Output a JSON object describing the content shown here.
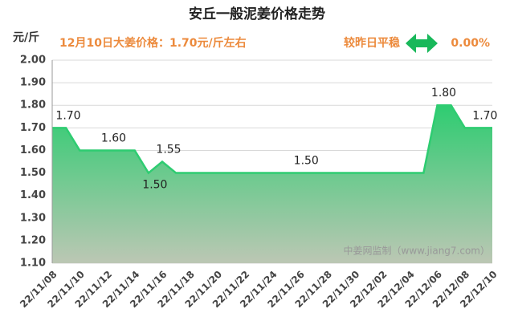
{
  "header": {
    "title": "安丘一般泥姜价格走势",
    "note": "12月10日大姜价格：1.70元/斤左右",
    "trend": "较昨日平稳",
    "change": "0.00%"
  },
  "chart_data": {
    "type": "area",
    "y_label": "元/斤",
    "watermark": "中姜网监制（www.jiang7.com）",
    "color": "#2ecc71",
    "grid": true,
    "categories": [
      "22/11/08",
      null,
      "22/11/10",
      null,
      "22/11/12",
      null,
      "22/11/14",
      null,
      "22/11/16",
      null,
      "22/11/18",
      null,
      "22/11/20",
      null,
      "22/11/22",
      null,
      "22/11/24",
      null,
      "22/11/26",
      null,
      "22/11/28",
      null,
      "22/11/30",
      null,
      "22/12/02",
      null,
      "22/12/04",
      null,
      "22/12/06",
      null,
      "22/12/08",
      null,
      "22/12/10"
    ],
    "values": [
      1.7,
      1.7,
      1.6,
      1.6,
      1.6,
      1.6,
      1.6,
      1.5,
      1.55,
      1.5,
      1.5,
      1.5,
      1.5,
      1.5,
      1.5,
      1.5,
      1.5,
      1.5,
      1.5,
      1.5,
      1.5,
      1.5,
      1.5,
      1.5,
      1.5,
      1.5,
      1.5,
      1.5,
      1.8,
      1.8,
      1.7,
      1.7,
      1.7
    ],
    "value_labels": [
      "1.70",
      null,
      null,
      null,
      "1.60",
      null,
      null,
      "1.50",
      "1.55",
      null,
      null,
      null,
      null,
      null,
      null,
      null,
      null,
      null,
      "1.50",
      null,
      null,
      null,
      null,
      null,
      null,
      null,
      null,
      null,
      "1.80",
      null,
      null,
      "1.70",
      null
    ],
    "ylim": [
      1.1,
      2.0
    ],
    "yticks": [
      {
        "value": 1.1,
        "label": "1.10"
      },
      {
        "value": 1.2,
        "label": "1.20"
      },
      {
        "value": 1.3,
        "label": "1.30"
      },
      {
        "value": 1.4,
        "label": "1.40"
      },
      {
        "value": 1.5,
        "label": "1.50"
      },
      {
        "value": 1.6,
        "label": "1.60"
      },
      {
        "value": 1.7,
        "label": "1.70"
      },
      {
        "value": 1.8,
        "label": "1.80"
      },
      {
        "value": 1.9,
        "label": "1.90"
      },
      {
        "value": 2.0,
        "label": "2.00"
      }
    ]
  }
}
